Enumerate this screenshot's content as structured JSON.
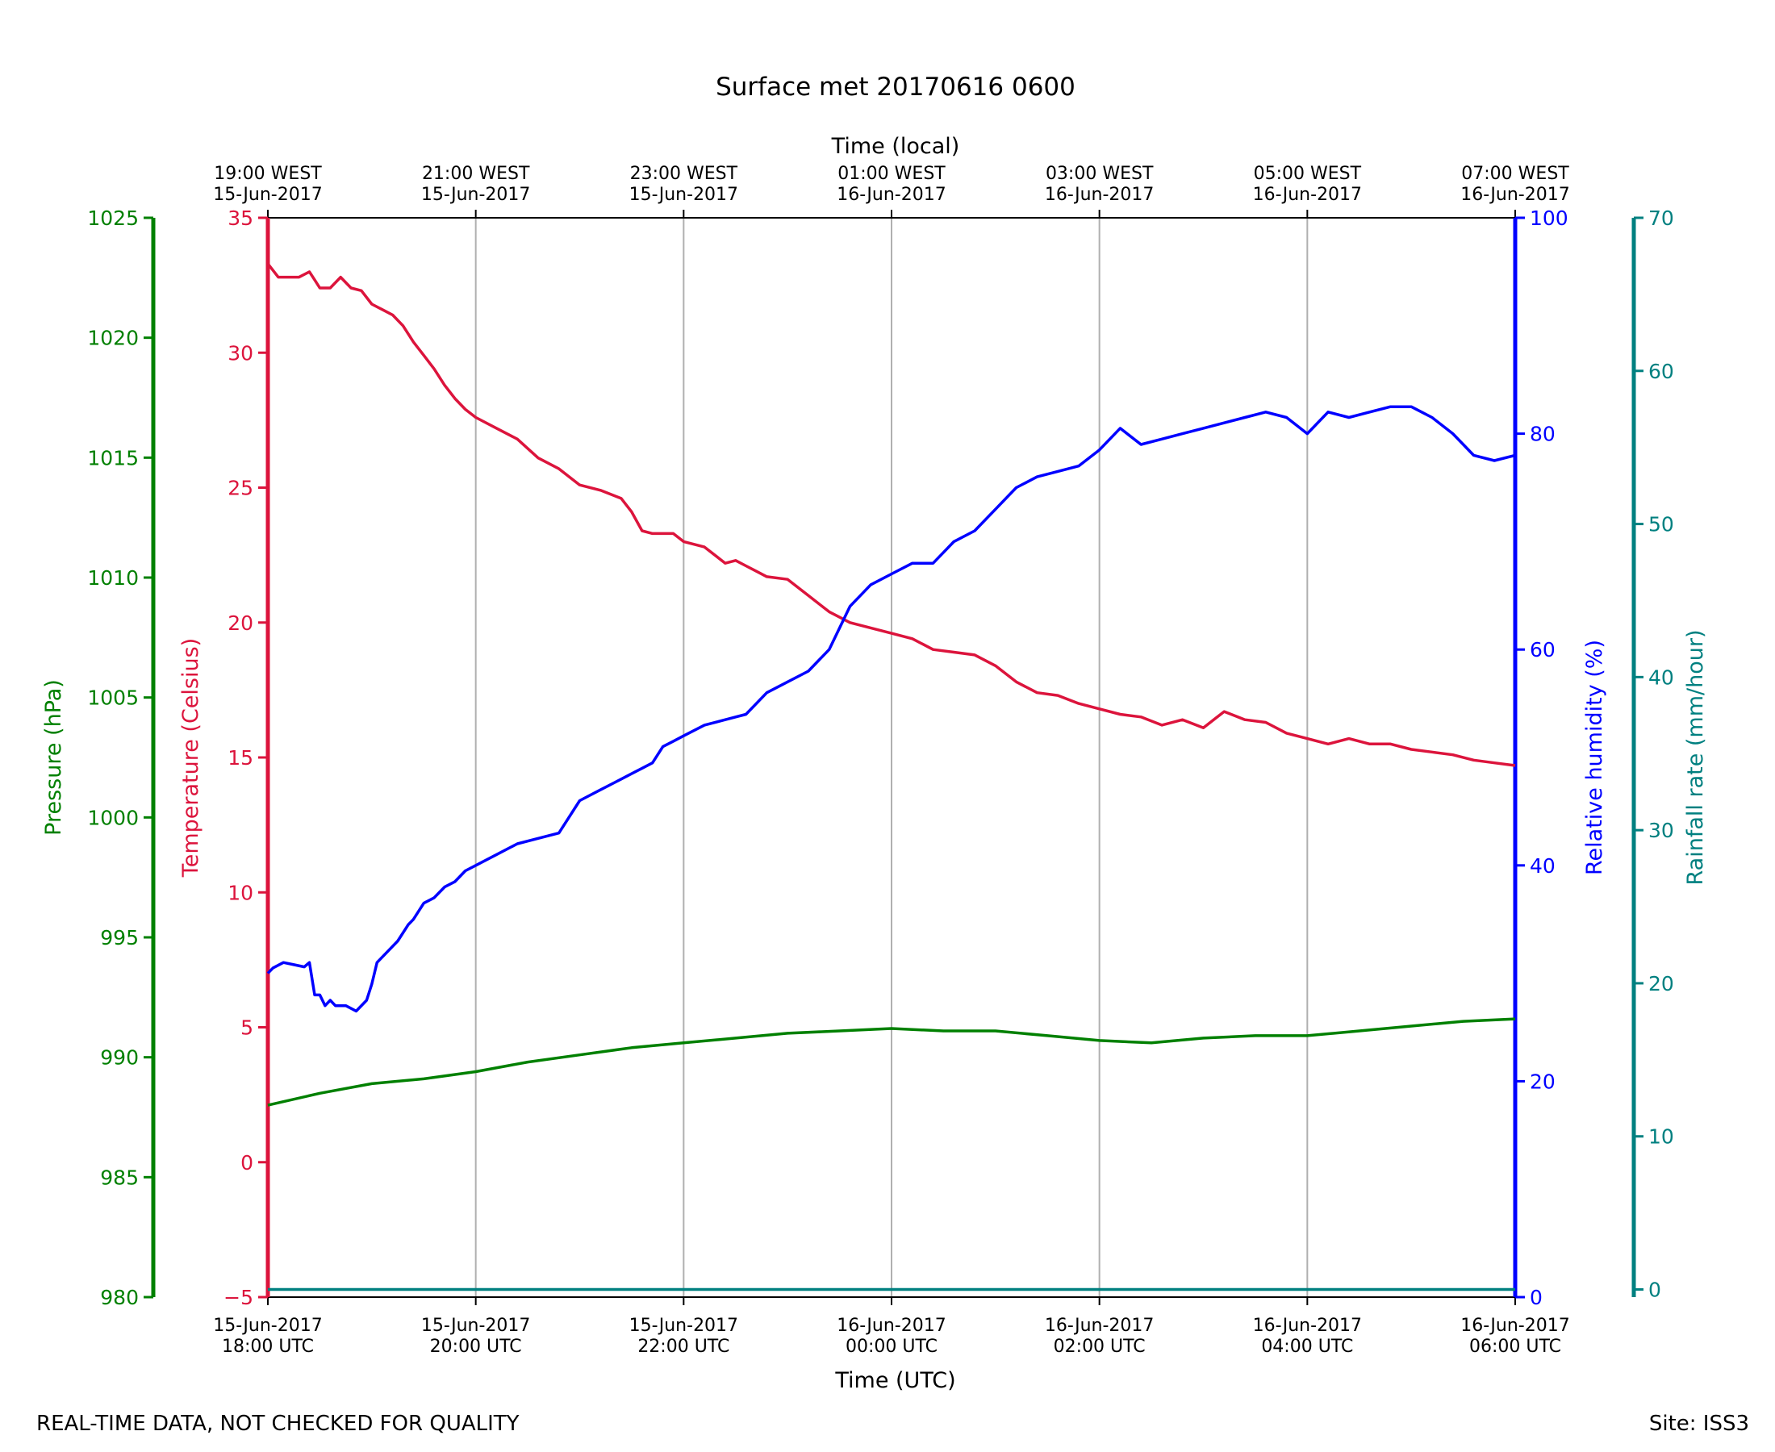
{
  "chart_data": {
    "type": "line",
    "title": "Surface met 20170616 0600",
    "top_xlabel": "Time (local)",
    "xlabel": "Time (UTC)",
    "footer_left": "REAL-TIME DATA, NOT CHECKED FOR QUALITY",
    "footer_right": "Site: ISS3",
    "xlim_hours": [
      0,
      12
    ],
    "x_ticks": [
      {
        "hours": 0,
        "utc_date": "15-Jun-2017",
        "utc_time": "18:00 UTC",
        "local_time": "19:00 WEST",
        "local_date": "15-Jun-2017"
      },
      {
        "hours": 2,
        "utc_date": "15-Jun-2017",
        "utc_time": "20:00 UTC",
        "local_time": "21:00 WEST",
        "local_date": "15-Jun-2017"
      },
      {
        "hours": 4,
        "utc_date": "15-Jun-2017",
        "utc_time": "22:00 UTC",
        "local_time": "23:00 WEST",
        "local_date": "15-Jun-2017"
      },
      {
        "hours": 6,
        "utc_date": "16-Jun-2017",
        "utc_time": "00:00 UTC",
        "local_time": "01:00 WEST",
        "local_date": "16-Jun-2017"
      },
      {
        "hours": 8,
        "utc_date": "16-Jun-2017",
        "utc_time": "02:00 UTC",
        "local_time": "03:00 WEST",
        "local_date": "16-Jun-2017"
      },
      {
        "hours": 10,
        "utc_date": "16-Jun-2017",
        "utc_time": "04:00 UTC",
        "local_time": "05:00 WEST",
        "local_date": "16-Jun-2017"
      },
      {
        "hours": 12,
        "utc_date": "16-Jun-2017",
        "utc_time": "06:00 UTC",
        "local_time": "07:00 WEST",
        "local_date": "16-Jun-2017"
      }
    ],
    "axes": {
      "pressure": {
        "label": "Pressure (hPa)",
        "color": "#008000",
        "ylim": [
          980,
          1025
        ],
        "ticks": [
          980,
          985,
          990,
          995,
          1000,
          1005,
          1010,
          1015,
          1020,
          1025
        ]
      },
      "temperature": {
        "label": "Temperature (Celsius)",
        "color": "#dc143c",
        "ylim": [
          -5,
          35
        ],
        "ticks": [
          -5,
          0,
          5,
          10,
          15,
          20,
          25,
          30,
          35
        ]
      },
      "humidity": {
        "label": "Relative humidity (%)",
        "color": "#0000ff",
        "ylim": [
          0,
          100
        ],
        "ticks": [
          0,
          20,
          40,
          60,
          80,
          100
        ]
      },
      "rainfall": {
        "label": "Rainfall rate (mm/hour)",
        "color": "#008080",
        "ylim": [
          -0.5,
          70
        ],
        "ticks": [
          0,
          10,
          20,
          30,
          40,
          50,
          60,
          70
        ]
      }
    },
    "series": [
      {
        "axis": "temperature",
        "hours": [
          0,
          0.1,
          0.2,
          0.3,
          0.4,
          0.45,
          0.5,
          0.6,
          0.7,
          0.8,
          0.9,
          1.0,
          1.1,
          1.2,
          1.3,
          1.4,
          1.5,
          1.6,
          1.7,
          1.8,
          1.9,
          2.0,
          2.2,
          2.4,
          2.6,
          2.8,
          3.0,
          3.2,
          3.4,
          3.5,
          3.6,
          3.7,
          3.8,
          3.9,
          4.0,
          4.2,
          4.4,
          4.5,
          4.6,
          4.7,
          4.8,
          5.0,
          5.2,
          5.4,
          5.6,
          5.8,
          6.0,
          6.2,
          6.4,
          6.6,
          6.8,
          7.0,
          7.2,
          7.4,
          7.6,
          7.8,
          8.0,
          8.2,
          8.4,
          8.6,
          8.8,
          9.0,
          9.2,
          9.4,
          9.6,
          9.8,
          10.0,
          10.2,
          10.4,
          10.6,
          10.8,
          11.0,
          11.2,
          11.4,
          11.6,
          11.8,
          12.0
        ],
        "values": [
          33.3,
          32.8,
          32.8,
          32.8,
          33.0,
          32.7,
          32.4,
          32.4,
          32.8,
          32.4,
          32.3,
          31.8,
          31.6,
          31.4,
          31.0,
          30.4,
          29.9,
          29.4,
          28.8,
          28.3,
          27.9,
          27.6,
          27.2,
          26.8,
          26.1,
          25.7,
          25.1,
          24.9,
          24.6,
          24.1,
          23.4,
          23.3,
          23.3,
          23.3,
          23.0,
          22.8,
          22.2,
          22.3,
          22.1,
          21.9,
          21.7,
          21.6,
          21.0,
          20.4,
          20.0,
          19.8,
          19.6,
          19.4,
          19.0,
          18.9,
          18.8,
          18.4,
          17.8,
          17.4,
          17.3,
          17.0,
          16.8,
          16.6,
          16.5,
          16.2,
          16.4,
          16.1,
          16.7,
          16.4,
          16.3,
          15.9,
          15.7,
          15.5,
          15.7,
          15.5,
          15.5,
          15.3,
          15.2,
          15.1,
          14.9,
          14.8,
          14.7
        ]
      },
      {
        "axis": "humidity",
        "hours": [
          0,
          0.05,
          0.15,
          0.25,
          0.35,
          0.4,
          0.45,
          0.5,
          0.55,
          0.6,
          0.65,
          0.75,
          0.85,
          0.95,
          1.0,
          1.05,
          1.15,
          1.25,
          1.35,
          1.4,
          1.5,
          1.6,
          1.7,
          1.8,
          1.9,
          2.0,
          2.2,
          2.4,
          2.6,
          2.8,
          3.0,
          3.2,
          3.4,
          3.5,
          3.6,
          3.7,
          3.8,
          3.9,
          4.0,
          4.2,
          4.4,
          4.6,
          4.8,
          5.0,
          5.2,
          5.4,
          5.6,
          5.8,
          6.0,
          6.2,
          6.4,
          6.5,
          6.6,
          6.8,
          7.0,
          7.2,
          7.4,
          7.6,
          7.8,
          8.0,
          8.2,
          8.4,
          8.6,
          8.8,
          9.0,
          9.2,
          9.4,
          9.6,
          9.8,
          10.0,
          10.2,
          10.4,
          10.6,
          10.8,
          11.0,
          11.1,
          11.2,
          11.4,
          11.6,
          11.8,
          12.0
        ],
        "values": [
          30,
          30.5,
          31,
          30.8,
          30.6,
          31,
          28,
          28,
          27,
          27.5,
          27,
          27,
          26.5,
          27.5,
          29,
          31,
          32,
          33,
          34.5,
          35,
          36.5,
          37,
          38,
          38.5,
          39.5,
          40,
          41,
          42,
          42.5,
          43,
          46,
          47,
          48,
          48.5,
          49,
          49.5,
          51,
          51.5,
          52,
          53,
          53.5,
          54,
          56,
          57,
          58,
          60,
          64,
          66,
          67,
          68,
          68,
          69,
          70,
          71,
          73,
          75,
          76,
          76.5,
          77,
          78.5,
          80.5,
          79,
          79.5,
          80,
          80.5,
          81,
          81.5,
          82,
          81.5,
          80,
          82,
          81.5,
          82,
          82.5,
          82.5,
          82,
          81.5,
          80,
          78,
          77.5,
          78
        ]
      },
      {
        "axis": "pressure",
        "hours": [
          0,
          0.5,
          1.0,
          1.5,
          2.0,
          2.5,
          3.0,
          3.5,
          4.0,
          4.5,
          5.0,
          5.5,
          6.0,
          6.5,
          7.0,
          7.5,
          8.0,
          8.5,
          9.0,
          9.5,
          10.0,
          10.5,
          11.0,
          11.5,
          12.0
        ],
        "values": [
          988,
          988.5,
          988.9,
          989.1,
          989.4,
          989.8,
          990.1,
          990.4,
          990.6,
          990.8,
          991.0,
          991.1,
          991.2,
          991.1,
          991.1,
          990.9,
          990.7,
          990.6,
          990.8,
          990.9,
          990.9,
          991.1,
          991.3,
          991.5,
          991.6
        ]
      },
      {
        "axis": "rainfall",
        "hours": [
          0,
          12
        ],
        "values": [
          0,
          0
        ]
      }
    ]
  }
}
